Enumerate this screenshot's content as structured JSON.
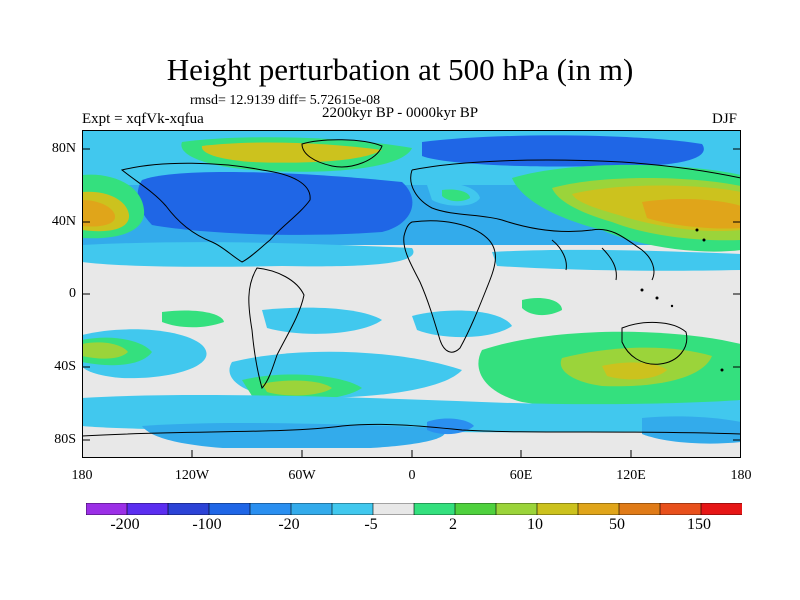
{
  "title": "Height perturbation at 500 hPa (in m)",
  "stats": "rmsd= 12.9139 diff= 5.72615e-08",
  "experiment": "Expt = xqfVk-xqfua",
  "period": "2200kyr BP - 0000kyr BP",
  "season": "DJF",
  "lat_labels": [
    "80N",
    "40N",
    "0",
    "40S",
    "80S"
  ],
  "lon_labels": [
    "180",
    "120W",
    "60W",
    "0",
    "60E",
    "120E",
    "180"
  ],
  "colorbar": {
    "colors": [
      "#9b2fe6",
      "#5b2ef0",
      "#2c43d6",
      "#1f66e6",
      "#2a8ff0",
      "#33abeb",
      "#41c8ee",
      "#e8e8e8",
      "#34e07e",
      "#4fd13e",
      "#9bd43a",
      "#ccc21e",
      "#e0a51a",
      "#e07b18",
      "#e8501c",
      "#e61616"
    ],
    "labels": [
      "-200",
      "-100",
      "-20",
      "-5",
      "2",
      "10",
      "50",
      "150"
    ]
  }
}
